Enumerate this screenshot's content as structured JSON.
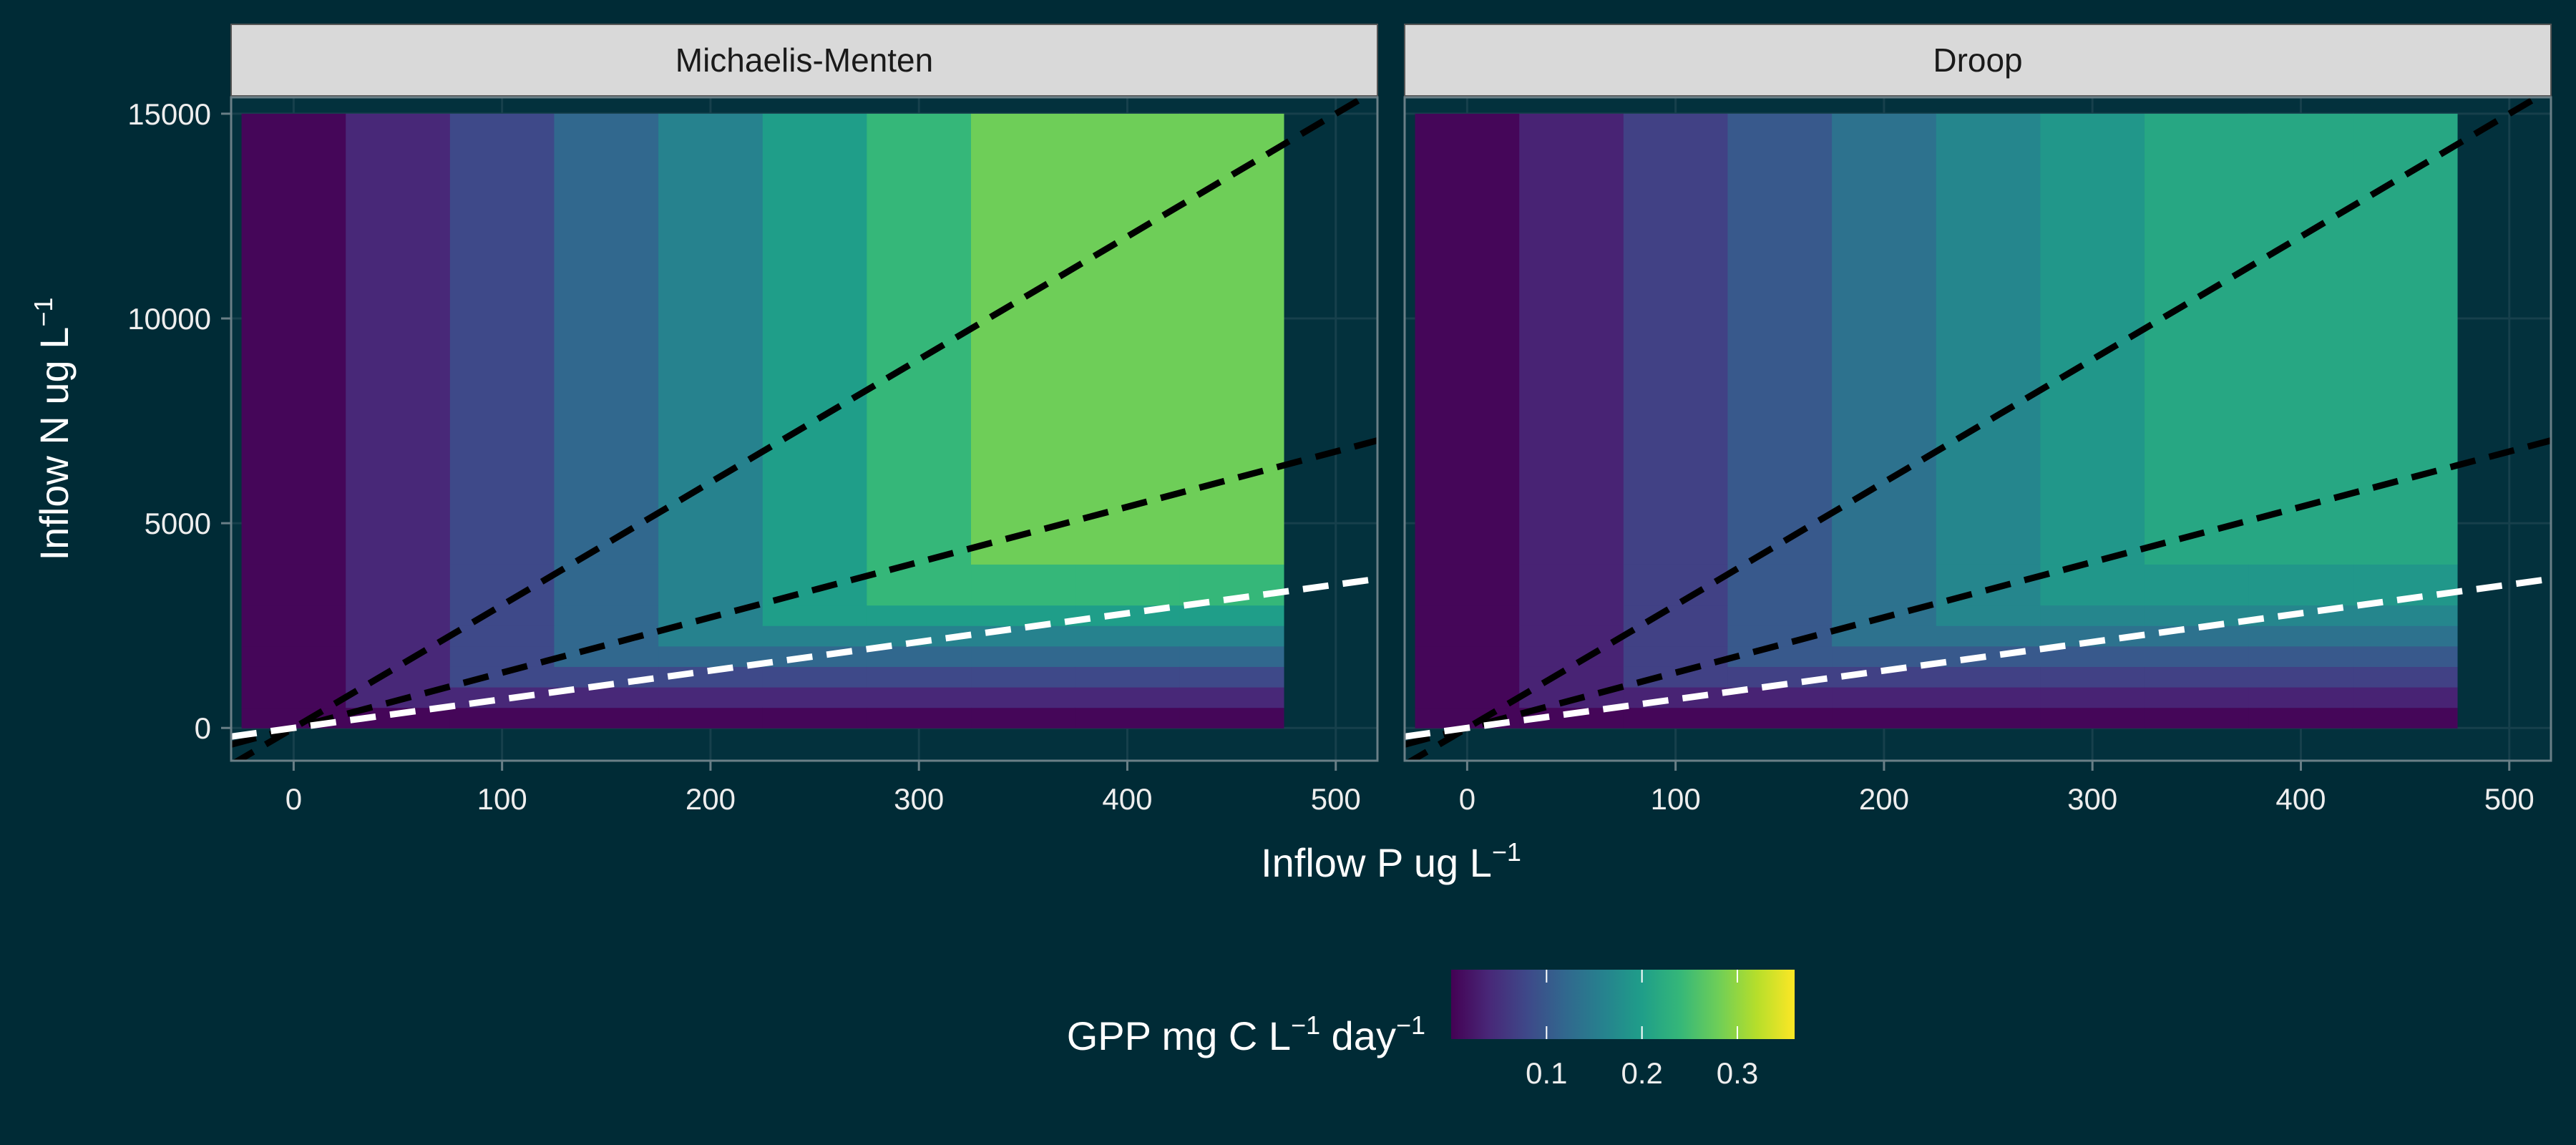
{
  "chart_data": {
    "type": "heatmap",
    "facets": [
      "Michaelis-Menten",
      "Droop"
    ],
    "xlabel": "Inflow P ug L",
    "xlabel_sup": "−1",
    "ylabel": "Inflow N ug L",
    "ylabel_sup": "−1",
    "x_ticks": [
      0,
      100,
      200,
      300,
      400,
      500
    ],
    "y_ticks": [
      0,
      5000,
      10000,
      15000
    ],
    "xlim": [
      -30,
      520
    ],
    "ylim": [
      -800,
      15400
    ],
    "p_values": [
      0,
      50,
      100,
      150,
      200,
      250,
      300,
      350,
      400,
      450
    ],
    "n_bands": [
      0,
      500,
      1000,
      1500,
      2000,
      2500,
      3000,
      4000,
      15000
    ],
    "p_cell_width": 50,
    "ratio_lines": [
      {
        "color": "#000000",
        "ratio": 30
      },
      {
        "color": "#000000",
        "ratio": 13.5
      },
      {
        "color": "#ffffff",
        "ratio": 7
      }
    ],
    "gpp": {
      "Michaelis-Menten": {
        "p_saturated": [
          0.005,
          0.04,
          0.08,
          0.12,
          0.16,
          0.2,
          0.24,
          0.28,
          0.32,
          0.36
        ],
        "n_bands_value": [
          0.005,
          0.04,
          0.08,
          0.12,
          0.16,
          0.2,
          0.24,
          0.28,
          0.32
        ]
      },
      "Droop": {
        "p_saturated": [
          0.005,
          0.035,
          0.07,
          0.1,
          0.135,
          0.165,
          0.19,
          0.215,
          0.245,
          0.27
        ],
        "n_bands_value": [
          0.005,
          0.035,
          0.07,
          0.1,
          0.135,
          0.165,
          0.19,
          0.215,
          0.245
        ]
      }
    },
    "legend": {
      "title": "GPP mg C L",
      "title_sup1": "−1",
      "title_mid": " day",
      "title_sup2": "−1",
      "ticks": [
        0.1,
        0.2,
        0.3
      ],
      "tick_labels": [
        "0.1",
        "0.2",
        "0.3"
      ],
      "range": [
        0,
        0.36
      ],
      "placement": "bottom"
    },
    "colors": {
      "background": "#002b36",
      "panel": "#03313d",
      "strip": "#d9d9d9",
      "strip_border": "#555555",
      "frame": "#6a7f87",
      "grid": "#17404c",
      "viridis": [
        "#440154",
        "#482878",
        "#3e4989",
        "#31688e",
        "#26828e",
        "#1f9e89",
        "#35b779",
        "#6ece58",
        "#b5de2b",
        "#fde725"
      ]
    }
  }
}
